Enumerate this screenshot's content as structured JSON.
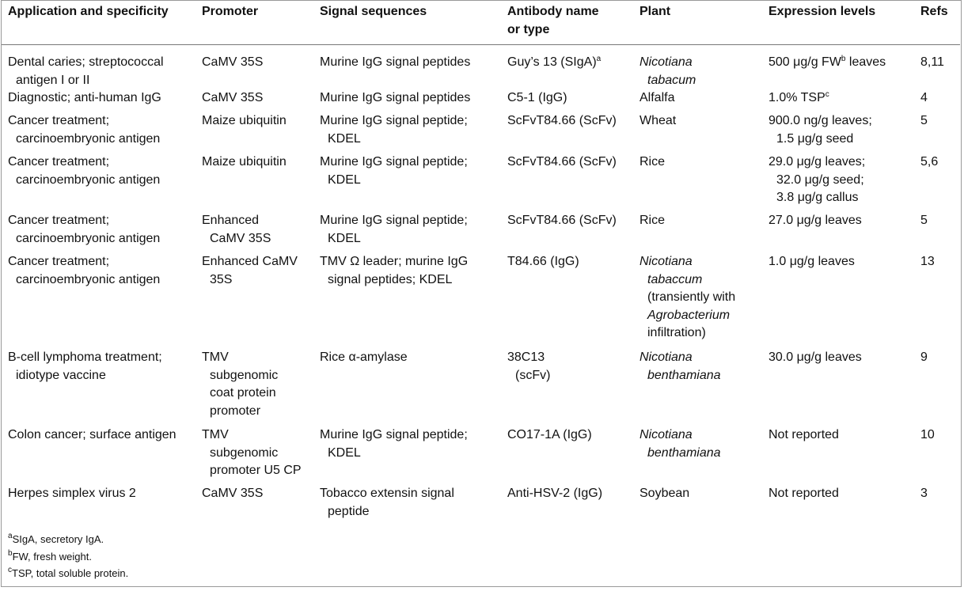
{
  "table": {
    "columns": [
      "Application and specificity",
      "Promoter",
      "Signal sequences",
      "Antibody name\nor type",
      "Plant",
      "Expression levels",
      "Refs"
    ],
    "rows": [
      [
        "Dental caries; streptococcal\nantigen I or II",
        "CaMV 35S",
        "Murine IgG signal peptides",
        [
          {
            "text": "Guy’s 13 (SIgA)"
          },
          {
            "text": "a",
            "sup": true
          }
        ],
        [
          {
            "text": "Nicotiana\ntabacum",
            "italic": true
          }
        ],
        [
          {
            "text": "500 μg/g FW"
          },
          {
            "text": "b",
            "sup": true
          },
          {
            "text": " leaves"
          }
        ],
        "8,11"
      ],
      [
        "Diagnostic; anti-human IgG",
        "CaMV 35S",
        "Murine IgG signal peptides",
        "C5-1 (IgG)",
        "Alfalfa",
        [
          {
            "text": "1.0% TSP"
          },
          {
            "text": "c",
            "sup": true
          }
        ],
        "4"
      ],
      [
        "Cancer treatment;\ncarcinoembryonic antigen",
        "Maize ubiquitin",
        "Murine IgG signal peptide;\nKDEL",
        "ScFvT84.66 (ScFv)",
        "Wheat",
        "900.0 ng/g leaves;\n1.5 μg/g seed",
        "5"
      ],
      [
        "Cancer treatment;\ncarcinoembryonic antigen",
        "Maize ubiquitin",
        "Murine IgG signal peptide;\nKDEL",
        "ScFvT84.66 (ScFv)",
        "Rice",
        "29.0 μg/g leaves;\n32.0 μg/g seed;\n3.8  μg/g callus",
        "5,6"
      ],
      [
        "Cancer treatment;\ncarcinoembryonic antigen",
        "Enhanced\nCaMV 35S",
        "Murine IgG signal peptide;\nKDEL",
        "ScFvT84.66 (ScFv)",
        "Rice",
        "27.0 μg/g leaves",
        "5"
      ],
      [
        "Cancer treatment;\ncarcinoembryonic antigen",
        "Enhanced CaMV\n35S",
        "TMV Ω leader; murine IgG\nsignal peptides; KDEL",
        "T84.66 (IgG)",
        [
          {
            "text": "Nicotiana\ntabaccum",
            "italic": true
          },
          {
            "text": "\n(transiently with\n"
          },
          {
            "text": "Agrobacterium",
            "italic": true
          },
          {
            "text": "\ninfiltration)"
          }
        ],
        "1.0 μg/g leaves",
        "13"
      ],
      [
        "B-cell lymphoma treatment;\nidiotype vaccine",
        "TMV\nsubgenomic\ncoat protein\npromoter",
        "Rice α-amylase",
        "38C13\n(scFv)",
        [
          {
            "text": "Nicotiana\nbenthamiana",
            "italic": true
          }
        ],
        "30.0 μg/g leaves",
        "9"
      ],
      [
        "Colon cancer; surface antigen",
        "TMV\nsubgenomic\npromoter U5 CP",
        "Murine IgG signal peptide;\nKDEL",
        "CO17-1A (IgG)",
        [
          {
            "text": "Nicotiana\nbenthamiana",
            "italic": true
          }
        ],
        "Not reported",
        "10"
      ],
      [
        "Herpes simplex virus 2",
        "CaMV 35S",
        "Tobacco extensin signal\npeptide",
        "Anti-HSV-2 (IgG)",
        "Soybean",
        "Not reported",
        "3"
      ]
    ],
    "footnotes": [
      {
        "mark": "a",
        "text": "SIgA, secretory IgA."
      },
      {
        "mark": "b",
        "text": "FW, fresh weight."
      },
      {
        "mark": "c",
        "text": "TSP, total soluble protein."
      }
    ]
  }
}
